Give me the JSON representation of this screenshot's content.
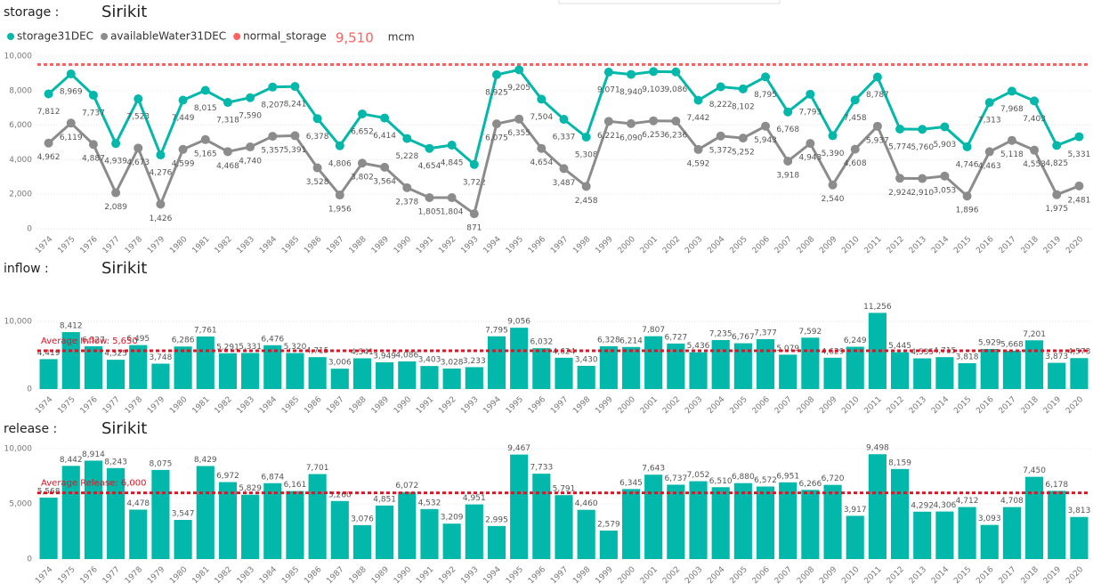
{
  "chart_data": [
    {
      "type": "line",
      "section": "storage :",
      "title": "Sirikit",
      "categories": [
        "1974",
        "1975",
        "1976",
        "1977",
        "1978",
        "1979",
        "1980",
        "1981",
        "1982",
        "1983",
        "1984",
        "1985",
        "1986",
        "1987",
        "1988",
        "1989",
        "1990",
        "1991",
        "1992",
        "1993",
        "1994",
        "1995",
        "1996",
        "1997",
        "1998",
        "1999",
        "2000",
        "2001",
        "2002",
        "2003",
        "2004",
        "2005",
        "2006",
        "2007",
        "2008",
        "2009",
        "2010",
        "2011",
        "2012",
        "2013",
        "2014",
        "2015",
        "2016",
        "2017",
        "2018",
        "2019",
        "2020"
      ],
      "series": [
        {
          "name": "storage31DEC",
          "color": "#01b8aa",
          "values": [
            7812,
            8969,
            7737,
            4939,
            7523,
            4276,
            7449,
            8015,
            7318,
            7590,
            8207,
            8241,
            6378,
            4806,
            6652,
            6414,
            5228,
            4654,
            4845,
            3722,
            8925,
            9205,
            7504,
            6337,
            5308,
            9071,
            8940,
            9103,
            9086,
            7442,
            8222,
            8102,
            8795,
            6768,
            7793,
            5390,
            7458,
            8787,
            5774,
            5760,
            5903,
            4746,
            7313,
            7968,
            7403,
            4825,
            5331
          ],
          "value_labels": [
            "7,812",
            "8,969",
            "7,737",
            "4,939",
            "7,523",
            "4,276",
            "7,449",
            "8,015",
            "7,318",
            "7,590",
            "8,207",
            "8,241",
            "6,378",
            "4,806",
            "6,652",
            "6,414",
            "5,228",
            "4,654",
            "4,845",
            "3,722",
            "8,925",
            "9,205",
            "7,504",
            "6,337",
            "5,308",
            "9,071",
            "8,940",
            "9,103",
            "9,086",
            "7,442",
            "8,222",
            "8,102",
            "8,795",
            "6,768",
            "7,793",
            "5,390",
            "7,458",
            "8,787",
            "5,774",
            "5,760",
            "5,903",
            "4,746",
            "7,313",
            "7,968",
            "7,403",
            "4,825",
            "5,331"
          ]
        },
        {
          "name": "availableWater31DEC",
          "color": "#8c8c8c",
          "values": [
            4962,
            6119,
            4887,
            2089,
            4673,
            1426,
            4599,
            5165,
            4468,
            4740,
            5357,
            5391,
            3528,
            1956,
            3802,
            3564,
            2378,
            1805,
            1804,
            871,
            6075,
            6355,
            4654,
            3487,
            2458,
            6221,
            6090,
            6253,
            6236,
            4592,
            5372,
            5252,
            5943,
            3918,
            4943,
            2540,
            4608,
            5937,
            2924,
            2910,
            3053,
            1896,
            4463,
            5118,
            4553,
            1975,
            2481
          ],
          "value_labels": [
            "4,962",
            "6,119",
            "4,887",
            "2,089",
            "4,673",
            "1,426",
            "4,599",
            "5,165",
            "4,468",
            "4,740",
            "5,357",
            "5,391",
            "3,528",
            "1,956",
            "3,802",
            "3,564",
            "2,378",
            "1,805",
            "1,804",
            "871",
            "6,075",
            "6,355",
            "4,654",
            "3,487",
            "2,458",
            "6,221",
            "6,090",
            "6,253",
            "6,236",
            "4,592",
            "5,372",
            "5,252",
            "5,943",
            "3,918",
            "4,943",
            "2,540",
            "4,608",
            "5,937",
            "2,924",
            "2,910",
            "3,053",
            "1,896",
            "4,463",
            "5,118",
            "4,553",
            "1,975",
            "2,481"
          ]
        }
      ],
      "reference_line": {
        "name": "normal_storage",
        "color": "#fd625e",
        "value": 9510,
        "label": "9,510"
      },
      "unit": "mcm",
      "ylim": [
        0,
        10000
      ],
      "yticks": [
        0,
        {
          "value": 2000,
          "label": "2,000"
        },
        {
          "value": 4000,
          "label": "4,000"
        },
        {
          "value": 6000,
          "label": "6,000"
        },
        {
          "value": 8000,
          "label": "8,000"
        },
        {
          "value": 10000,
          "label": "10,000"
        }
      ]
    },
    {
      "type": "bar",
      "section": "inflow :",
      "title": "Sirikit",
      "categories": [
        "1974",
        "1975",
        "1976",
        "1977",
        "1978",
        "1979",
        "1980",
        "1981",
        "1982",
        "1983",
        "1984",
        "1985",
        "1986",
        "1987",
        "1988",
        "1989",
        "1990",
        "1991",
        "1992",
        "1993",
        "1994",
        "1995",
        "1996",
        "1997",
        "1998",
        "1999",
        "2000",
        "2001",
        "2002",
        "2003",
        "2004",
        "2005",
        "2006",
        "2007",
        "2008",
        "2009",
        "2010",
        "2011",
        "2012",
        "2013",
        "2014",
        "2015",
        "2016",
        "2017",
        "2018",
        "2019",
        "2020"
      ],
      "color": "#01b8aa",
      "values": [
        4419,
        8412,
        6327,
        4325,
        6495,
        3748,
        6286,
        7761,
        5291,
        5331,
        6476,
        5320,
        4715,
        3006,
        4541,
        3949,
        4086,
        3403,
        3028,
        3233,
        7795,
        9056,
        6032,
        4624,
        3430,
        6328,
        6214,
        7807,
        6727,
        5436,
        7235,
        6767,
        7377,
        5079,
        7592,
        4629,
        6249,
        11256,
        5445,
        4535,
        4715,
        3818,
        5929,
        5668,
        7201,
        3873,
        4573
      ],
      "value_labels": [
        "4,419",
        "8,412",
        "6,327",
        "4,325",
        "6,495",
        "3,748",
        "6,286",
        "7,761",
        "5,291",
        "5,331",
        "6,476",
        "5,320",
        "4,715",
        "3,006",
        "4,541",
        "3,949",
        "4,086",
        "3,403",
        "3,028",
        "3,233",
        "7,795",
        "9,056",
        "6,032",
        "4,624",
        "3,430",
        "6,328",
        "6,214",
        "7,807",
        "6,727",
        "5,436",
        "7,235",
        "6,767",
        "7,377",
        "5,079",
        "7,592",
        "4,629",
        "6,249",
        "11,256",
        "5,445",
        "4,535",
        "4,715",
        "3,818",
        "5,929",
        "5,668",
        "7,201",
        "3,873",
        "4,573"
      ],
      "average": {
        "label": "Average Inflow: 5,650",
        "value": 5650,
        "color": "#e81123"
      },
      "ylim": [
        0,
        12000
      ],
      "yticks": [
        0,
        {
          "value": 10000,
          "label": "10,000"
        }
      ]
    },
    {
      "type": "bar",
      "section": "release :",
      "title": "Sirikit",
      "categories": [
        "1974",
        "1975",
        "1976",
        "1977",
        "1978",
        "1979",
        "1980",
        "1981",
        "1982",
        "1983",
        "1984",
        "1985",
        "1986",
        "1987",
        "1988",
        "1989",
        "1990",
        "1991",
        "1992",
        "1993",
        "1994",
        "1995",
        "1996",
        "1997",
        "1998",
        "1999",
        "2000",
        "2001",
        "2002",
        "2003",
        "2004",
        "2005",
        "2006",
        "2007",
        "2008",
        "2009",
        "2010",
        "2011",
        "2012",
        "2013",
        "2014",
        "2015",
        "2016",
        "2017",
        "2018",
        "2019",
        "2020"
      ],
      "color": "#01b8aa",
      "values": [
        5568,
        8442,
        8914,
        8243,
        4478,
        8075,
        3547,
        8429,
        6972,
        5829,
        6874,
        6161,
        7701,
        5260,
        3076,
        4851,
        6072,
        4532,
        3209,
        4951,
        2995,
        9467,
        7733,
        5791,
        4460,
        2579,
        6345,
        7643,
        6737,
        7052,
        6510,
        6880,
        6572,
        6951,
        6266,
        6720,
        3917,
        9498,
        8159,
        4292,
        4306,
        4712,
        3093,
        4708,
        7450,
        6178,
        3813
      ],
      "value_labels": [
        "5,568",
        "8,442",
        "8,914",
        "8,243",
        "4,478",
        "8,075",
        "3,547",
        "8,429",
        "6,972",
        "5,829",
        "6,874",
        "6,161",
        "7,701",
        "5,260",
        "3,076",
        "4,851",
        "6,072",
        "4,532",
        "3,209",
        "4,951",
        "2,995",
        "9,467",
        "7,733",
        "5,791",
        "4,460",
        "2,579",
        "6,345",
        "7,643",
        "6,737",
        "7,052",
        "6,510",
        "6,880",
        "6,572",
        "6,951",
        "6,266",
        "6,720",
        "3,917",
        "9,498",
        "8,159",
        "4,292",
        "4,306",
        "4,712",
        "3,093",
        "4,708",
        "7,450",
        "6,178",
        "3,813"
      ],
      "average": {
        "label": "Average Release: 6,000",
        "value": 6000,
        "color": "#e81123"
      },
      "ylim": [
        0,
        10000
      ],
      "yticks": [
        0,
        {
          "value": 5000,
          "label": "5,000"
        },
        {
          "value": 10000,
          "label": "10,000"
        }
      ]
    }
  ]
}
